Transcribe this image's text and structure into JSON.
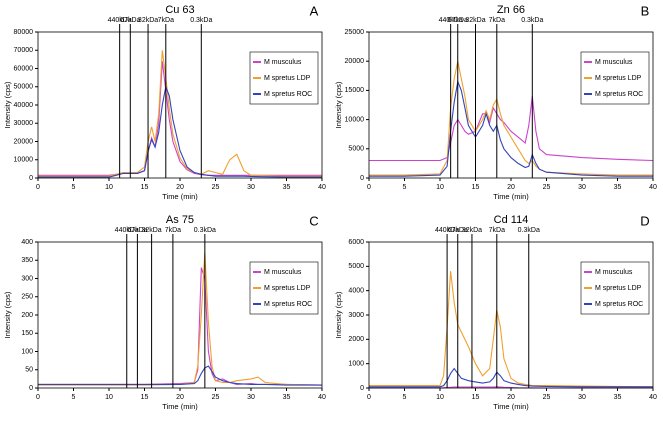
{
  "chart_data": [
    {
      "type": "line",
      "title": "Cu 63",
      "panel_label": "A",
      "x_label": "Time (min)",
      "y_label": "Intensity (cps)",
      "xlim": [
        0,
        40
      ],
      "xticks": [
        0,
        5,
        10,
        15,
        20,
        25,
        30,
        35,
        40
      ],
      "ylim": [
        0,
        80000
      ],
      "yticks": [
        0,
        10000,
        20000,
        30000,
        40000,
        50000,
        60000,
        70000,
        80000
      ],
      "markers": [
        {
          "x": 11.5,
          "label": "440kDa"
        },
        {
          "x": 13,
          "label": "67kDa"
        },
        {
          "x": 15.5,
          "label": "32kDa"
        },
        {
          "x": 18,
          "label": "7kDa"
        },
        {
          "x": 23,
          "label": "0.3kDa"
        }
      ],
      "x": [
        0,
        5,
        10,
        11,
        12,
        13,
        14,
        15,
        15.5,
        16,
        16.5,
        17,
        17.5,
        18,
        18.5,
        19,
        20,
        21,
        22,
        23,
        24,
        25,
        26,
        27,
        28,
        29,
        30,
        35,
        40
      ],
      "series": [
        {
          "name": "M musculus",
          "color": "#cc44cc",
          "values": [
            1500,
            1500,
            1500,
            2000,
            2500,
            2500,
            2500,
            4000,
            14000,
            22000,
            17000,
            30000,
            64000,
            48000,
            32000,
            20000,
            9000,
            4500,
            2500,
            1800,
            1500,
            1500,
            1500,
            1500,
            1500,
            1500,
            1500,
            1500,
            1500
          ]
        },
        {
          "name": "M spretus LDP",
          "color": "#f0a030",
          "values": [
            1000,
            1000,
            1000,
            2000,
            3000,
            3000,
            3000,
            6000,
            20000,
            28000,
            20000,
            35000,
            70000,
            55000,
            38000,
            24000,
            11000,
            5000,
            3000,
            2000,
            4000,
            3000,
            2000,
            10000,
            13000,
            4000,
            1500,
            1000,
            1000
          ]
        },
        {
          "name": "M spretus ROC",
          "color": "#3344bb",
          "values": [
            500,
            500,
            500,
            1500,
            2500,
            2500,
            2500,
            4000,
            15000,
            21000,
            17000,
            25000,
            40000,
            50000,
            45000,
            32000,
            15000,
            6000,
            3000,
            2000,
            1500,
            1000,
            1000,
            1000,
            1000,
            1000,
            800,
            500,
            500
          ]
        }
      ]
    },
    {
      "type": "line",
      "title": "Zn 66",
      "panel_label": "B",
      "x_label": "Time (min)",
      "y_label": "Intensity (cps)",
      "xlim": [
        0,
        40
      ],
      "xticks": [
        0,
        5,
        10,
        15,
        20,
        25,
        30,
        35,
        40
      ],
      "ylim": [
        0,
        25000
      ],
      "yticks": [
        0,
        5000,
        10000,
        15000,
        20000,
        25000
      ],
      "markers": [
        {
          "x": 11.5,
          "label": "440kDa"
        },
        {
          "x": 12.5,
          "label": "67kDa"
        },
        {
          "x": 15,
          "label": "32kDa"
        },
        {
          "x": 18,
          "label": "7kDa"
        },
        {
          "x": 23,
          "label": "0.3kDa"
        }
      ],
      "x": [
        0,
        5,
        10,
        11,
        11.5,
        12,
        12.5,
        13,
        13.5,
        14,
        15,
        16,
        16.5,
        17,
        17.5,
        18,
        18.5,
        19,
        20,
        21,
        22,
        22.5,
        23,
        23.5,
        24,
        25,
        30,
        35,
        40
      ],
      "series": [
        {
          "name": "M musculus",
          "color": "#cc44cc",
          "values": [
            3000,
            3000,
            3000,
            3500,
            6000,
            9000,
            10000,
            9000,
            8000,
            7500,
            8000,
            11000,
            11000,
            9500,
            12000,
            11000,
            10000,
            9500,
            8000,
            7000,
            6000,
            9000,
            14000,
            8000,
            5000,
            4000,
            3500,
            3200,
            3000
          ]
        },
        {
          "name": "M spretus LDP",
          "color": "#f0a030",
          "values": [
            500,
            500,
            700,
            3000,
            12000,
            17000,
            20000,
            17000,
            14000,
            10000,
            8000,
            10000,
            11500,
            10000,
            12500,
            13500,
            11000,
            9000,
            7000,
            5000,
            3000,
            2500,
            3000,
            2000,
            1500,
            1000,
            700,
            500,
            500
          ]
        },
        {
          "name": "M spretus ROC",
          "color": "#3344bb",
          "values": [
            300,
            300,
            500,
            2000,
            8000,
            13000,
            16500,
            15000,
            12000,
            9000,
            7000,
            9000,
            11000,
            9000,
            8000,
            9000,
            6500,
            5000,
            3500,
            2500,
            1800,
            2000,
            4000,
            2500,
            1500,
            1000,
            500,
            300,
            300
          ]
        }
      ]
    },
    {
      "type": "line",
      "title": "As 75",
      "panel_label": "C",
      "x_label": "Time (min)",
      "y_label": "Intensity (cps)",
      "xlim": [
        0,
        40
      ],
      "xticks": [
        0,
        5,
        10,
        15,
        20,
        25,
        30,
        35,
        40
      ],
      "ylim": [
        0,
        400
      ],
      "yticks": [
        0,
        50,
        100,
        150,
        200,
        250,
        300,
        350,
        400
      ],
      "markers": [
        {
          "x": 12.5,
          "label": "440kDa"
        },
        {
          "x": 14,
          "label": "67kDa"
        },
        {
          "x": 16,
          "label": "32kDa"
        },
        {
          "x": 19,
          "label": "7kDa"
        },
        {
          "x": 23.5,
          "label": "0.3kDa"
        }
      ],
      "x": [
        0,
        5,
        10,
        15,
        20,
        22,
        22.5,
        23,
        23.5,
        24,
        24.5,
        25,
        26,
        27,
        28,
        30,
        31,
        32,
        35,
        40
      ],
      "series": [
        {
          "name": "M musculus",
          "color": "#cc44cc",
          "values": [
            10,
            10,
            10,
            10,
            12,
            15,
            50,
            330,
            300,
            100,
            40,
            20,
            25,
            15,
            10,
            12,
            10,
            10,
            10,
            8
          ]
        },
        {
          "name": "M spretus LDP",
          "color": "#f0a030",
          "values": [
            8,
            8,
            8,
            8,
            10,
            15,
            60,
            200,
            370,
            180,
            60,
            20,
            15,
            15,
            20,
            25,
            30,
            15,
            10,
            8
          ]
        },
        {
          "name": "M spretus ROC",
          "color": "#3344bb",
          "values": [
            10,
            10,
            10,
            10,
            10,
            12,
            20,
            40,
            55,
            60,
            45,
            30,
            20,
            15,
            12,
            10,
            10,
            10,
            8,
            8
          ]
        }
      ]
    },
    {
      "type": "line",
      "title": "Cd 114",
      "panel_label": "D",
      "x_label": "Time (min)",
      "y_label": "Intensity (cps)",
      "xlim": [
        0,
        40
      ],
      "xticks": [
        0,
        5,
        10,
        15,
        20,
        25,
        30,
        35,
        40
      ],
      "ylim": [
        0,
        6000
      ],
      "yticks": [
        0,
        1000,
        2000,
        3000,
        4000,
        5000,
        6000
      ],
      "markers": [
        {
          "x": 11,
          "label": "440kDa"
        },
        {
          "x": 12.5,
          "label": "67kDa"
        },
        {
          "x": 14.5,
          "label": "32kDa"
        },
        {
          "x": 18,
          "label": "7kDa"
        },
        {
          "x": 22.5,
          "label": "0.3kDa"
        }
      ],
      "x": [
        0,
        5,
        10,
        10.5,
        11,
        11.5,
        12,
        12.5,
        13,
        14,
        15,
        16,
        17,
        17.5,
        18,
        18.5,
        19,
        20,
        21,
        22,
        23,
        25,
        30,
        40
      ],
      "series": [
        {
          "name": "M musculus",
          "color": "#cc44cc",
          "values": [
            0,
            0,
            0,
            10,
            20,
            30,
            40,
            40,
            40,
            40,
            40,
            40,
            40,
            40,
            50,
            40,
            30,
            20,
            10,
            5,
            5,
            0,
            0,
            0
          ]
        },
        {
          "name": "M spretus LDP",
          "color": "#f0a030",
          "values": [
            100,
            100,
            100,
            500,
            2500,
            4800,
            3500,
            2600,
            2300,
            1700,
            1000,
            500,
            800,
            2000,
            3200,
            2500,
            1200,
            400,
            200,
            150,
            100,
            100,
            80,
            50
          ]
        },
        {
          "name": "M spretus ROC",
          "color": "#3344bb",
          "values": [
            50,
            50,
            50,
            100,
            300,
            600,
            800,
            600,
            400,
            300,
            250,
            200,
            250,
            400,
            650,
            500,
            300,
            200,
            150,
            100,
            80,
            60,
            50,
            50
          ]
        }
      ]
    }
  ]
}
